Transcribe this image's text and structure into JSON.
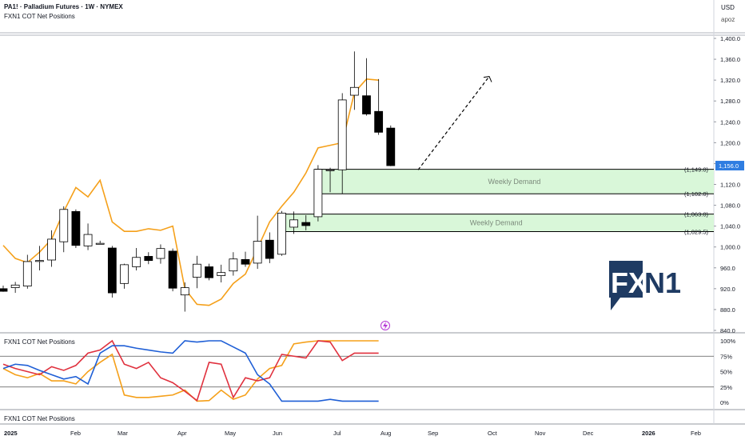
{
  "header": {
    "symbol_title": "PA1! · Palladium Futures · 1W · NYMEX",
    "indicator_title": "FXN1 COT Net Positions",
    "currency": "USD",
    "author": "apoz"
  },
  "panes": {
    "cot_title": "FXN1 COT Net Positions",
    "bottom_title": "FXN1 COT Net Positions"
  },
  "logo": {
    "text_fx": "FX",
    "text_n1": "N1",
    "color": "#1f3b63"
  },
  "colors": {
    "up": "#ffffff",
    "down": "#000000",
    "orange": "#f5a01a",
    "red": "#e0313e",
    "blue": "#1f5fd6",
    "demand": "#d9f7d9",
    "price_tag": "#2f7de1"
  },
  "chart_data": [
    {
      "type": "candlestick",
      "title": "PA1! · Palladium Futures · 1W · NYMEX",
      "y_ticks": [
        840,
        880,
        920,
        960,
        1000,
        1040,
        1080,
        1120,
        1160,
        1200,
        1240,
        1280,
        1320,
        1360,
        1400
      ],
      "y_tick_labels": [
        "840.0",
        "880.0",
        "920.0",
        "960.0",
        "1,000.0",
        "1,040.0",
        "1,080.0",
        "1,120.0",
        "1,160.0",
        "1,200.0",
        "1,240.0",
        "1,280.0",
        "1,320.0",
        "1,360.0",
        "1,400.0"
      ],
      "ylim": [
        838,
        1422
      ],
      "x_axis_labels": [
        "2025",
        "Feb",
        "Mar",
        "Apr",
        "May",
        "Jun",
        "Jul",
        "Aug",
        "Sep",
        "Oct",
        "Nov",
        "Dec",
        "2026",
        "Feb"
      ],
      "last_price": "1,156.0",
      "candles": [
        {
          "o": 920,
          "h": 926,
          "l": 914,
          "c": 915
        },
        {
          "o": 922,
          "h": 933,
          "l": 912,
          "c": 927
        },
        {
          "o": 925,
          "h": 985,
          "l": 920,
          "c": 972
        },
        {
          "o": 973,
          "h": 1002,
          "l": 955,
          "c": 974
        },
        {
          "o": 975,
          "h": 1032,
          "l": 962,
          "c": 1015
        },
        {
          "o": 1010,
          "h": 1078,
          "l": 990,
          "c": 1072
        },
        {
          "o": 1068,
          "h": 1072,
          "l": 998,
          "c": 1003
        },
        {
          "o": 1002,
          "h": 1045,
          "l": 994,
          "c": 1024
        },
        {
          "o": 1007,
          "h": 1012,
          "l": 1005,
          "c": 1007
        },
        {
          "o": 998,
          "h": 1002,
          "l": 903,
          "c": 912
        },
        {
          "o": 930,
          "h": 968,
          "l": 920,
          "c": 966
        },
        {
          "o": 962,
          "h": 998,
          "l": 955,
          "c": 980
        },
        {
          "o": 982,
          "h": 990,
          "l": 967,
          "c": 974
        },
        {
          "o": 978,
          "h": 1005,
          "l": 968,
          "c": 997
        },
        {
          "o": 992,
          "h": 997,
          "l": 915,
          "c": 921
        },
        {
          "o": 908,
          "h": 932,
          "l": 876,
          "c": 922
        },
        {
          "o": 942,
          "h": 983,
          "l": 921,
          "c": 967
        },
        {
          "o": 962,
          "h": 968,
          "l": 936,
          "c": 941
        },
        {
          "o": 945,
          "h": 966,
          "l": 932,
          "c": 951
        },
        {
          "o": 954,
          "h": 990,
          "l": 945,
          "c": 977
        },
        {
          "o": 976,
          "h": 991,
          "l": 962,
          "c": 967
        },
        {
          "o": 969,
          "h": 1060,
          "l": 958,
          "c": 1011
        },
        {
          "o": 1013,
          "h": 1028,
          "l": 969,
          "c": 978
        },
        {
          "o": 986,
          "h": 1069,
          "l": 983,
          "c": 1065
        },
        {
          "o": 1038,
          "h": 1068,
          "l": 1025,
          "c": 1052
        },
        {
          "o": 1047,
          "h": 1061,
          "l": 1032,
          "c": 1041
        },
        {
          "o": 1058,
          "h": 1157,
          "l": 1049,
          "c": 1149
        },
        {
          "o": 1148,
          "h": 1152,
          "l": 1105,
          "c": 1148
        },
        {
          "o": 1148,
          "h": 1295,
          "l": 1102,
          "c": 1282
        },
        {
          "o": 1291,
          "h": 1375,
          "l": 1263,
          "c": 1306
        },
        {
          "o": 1290,
          "h": 1362,
          "l": 1252,
          "c": 1255
        },
        {
          "o": 1260,
          "h": 1322,
          "l": 1215,
          "c": 1220
        },
        {
          "o": 1228,
          "h": 1233,
          "l": 1155,
          "c": 1156
        }
      ],
      "price_line": [
        1003,
        978,
        970,
        990,
        1015,
        1068,
        1114,
        1096,
        1128,
        1048,
        1030,
        1030,
        1035,
        1032,
        1040,
        920,
        890,
        888,
        900,
        930,
        948,
        997,
        1048,
        1078,
        1105,
        1142,
        1190,
        1195,
        1200,
        1296,
        1322,
        1320
      ],
      "zones": [
        {
          "label": "Weekly Demand",
          "top": 1149.0,
          "bottom": 1102.0,
          "top_label": "(1,149.0)",
          "bottom_label": "(1,102.0)"
        },
        {
          "label": "Weekly Demand",
          "top": 1063.0,
          "bottom": 1029.5,
          "top_label": "(1,063.0)",
          "bottom_label": "(1,029.5)"
        }
      ],
      "projection": {
        "from": 1148,
        "to": 1327
      }
    },
    {
      "type": "line",
      "title": "FXN1 COT Net Positions",
      "y_tick_labels": [
        "100%",
        "75%",
        "50%",
        "25%",
        "0%"
      ],
      "ylim": [
        0,
        100
      ],
      "series": [
        {
          "color": "orange",
          "values": [
            55,
            45,
            40,
            47,
            35,
            35,
            30,
            50,
            65,
            78,
            12,
            8,
            8,
            10,
            12,
            20,
            2,
            3,
            20,
            5,
            12,
            38,
            55,
            60,
            95,
            98,
            100,
            100,
            100,
            100,
            100,
            100
          ]
        },
        {
          "color": "red",
          "values": [
            62,
            55,
            50,
            45,
            58,
            52,
            60,
            80,
            85,
            100,
            62,
            55,
            65,
            40,
            32,
            18,
            3,
            65,
            62,
            8,
            40,
            35,
            40,
            78,
            75,
            72,
            100,
            98,
            68,
            80,
            80,
            80
          ]
        },
        {
          "color": "blue",
          "values": [
            55,
            62,
            60,
            52,
            45,
            38,
            42,
            30,
            80,
            92,
            92,
            88,
            85,
            82,
            80,
            100,
            98,
            100,
            100,
            90,
            80,
            45,
            30,
            2,
            2,
            2,
            2,
            5,
            2,
            2,
            2,
            2
          ]
        }
      ]
    }
  ]
}
